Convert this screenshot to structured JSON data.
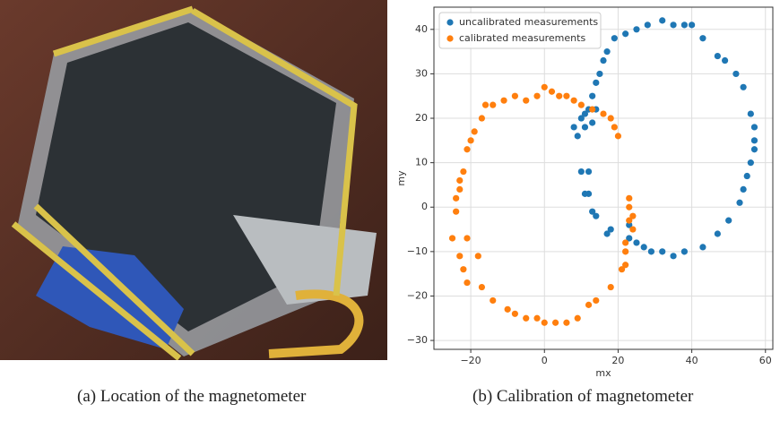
{
  "captions": [
    "(a) Location of the magnetometer",
    "(b) Calibration of magnetometer"
  ],
  "chart_data": {
    "type": "scatter",
    "xlabel": "mx",
    "ylabel": "my",
    "xlim": [
      -30,
      62
    ],
    "ylim": [
      -32,
      45
    ],
    "xticks": [
      {
        "value": -20,
        "label": "−20"
      },
      0,
      20,
      40,
      60
    ],
    "yticks": [
      {
        "value": -30,
        "label": "−30"
      },
      {
        "value": -20,
        "label": "−20"
      },
      {
        "value": -10,
        "label": "−10"
      },
      0,
      10,
      20,
      30,
      40
    ],
    "grid": true,
    "legend": "upper left",
    "series": [
      {
        "name": "uncalibrated measurements",
        "color": "#1f77b4",
        "x": [
          8,
          9,
          10,
          11,
          12,
          13,
          14,
          15,
          16,
          17,
          19,
          22,
          25,
          28,
          32,
          35,
          38,
          40,
          43,
          47,
          49,
          52,
          54,
          56,
          57,
          57,
          57,
          56,
          55,
          54,
          53,
          50,
          47,
          43,
          38,
          35,
          32,
          29,
          27,
          25,
          23,
          23,
          18,
          17,
          14,
          13,
          12,
          11,
          10,
          12,
          11,
          13,
          14
        ],
        "values": [
          18,
          16,
          20,
          21,
          22,
          25,
          28,
          30,
          33,
          35,
          38,
          39,
          40,
          41,
          42,
          41,
          41,
          41,
          38,
          34,
          33,
          30,
          27,
          21,
          18,
          15,
          13,
          10,
          7,
          4,
          1,
          -3,
          -6,
          -9,
          -10,
          -11,
          -10,
          -10,
          -9,
          -8,
          -7,
          -4,
          -5,
          -6,
          -2,
          -1,
          3,
          3,
          8,
          8,
          18,
          19,
          22
        ]
      },
      {
        "name": "calibrated measurements",
        "color": "#ff7f0e",
        "x": [
          -24,
          -24,
          -23,
          -23,
          -22,
          -21,
          -20,
          -19,
          -17,
          -16,
          -14,
          -11,
          -8,
          -5,
          -2,
          0,
          2,
          4,
          6,
          8,
          10,
          13,
          16,
          18,
          19,
          20,
          22,
          22,
          23,
          23,
          24,
          24,
          23,
          22,
          21,
          18,
          14,
          12,
          9,
          6,
          3,
          0,
          -2,
          -5,
          -8,
          -10,
          -14,
          -17,
          -21,
          -22,
          -23,
          -21,
          -25,
          -18
        ],
        "values": [
          -1,
          2,
          4,
          6,
          8,
          13,
          15,
          17,
          20,
          23,
          23,
          24,
          25,
          24,
          25,
          27,
          26,
          25,
          25,
          24,
          23,
          22,
          21,
          20,
          18,
          16,
          -8,
          -10,
          2,
          0,
          -2,
          -5,
          -3,
          -13,
          -14,
          -18,
          -21,
          -22,
          -25,
          -26,
          -26,
          -26,
          -25,
          -25,
          -24,
          -23,
          -21,
          -18,
          -17,
          -14,
          -11,
          -7,
          -7,
          -11
        ]
      }
    ]
  }
}
